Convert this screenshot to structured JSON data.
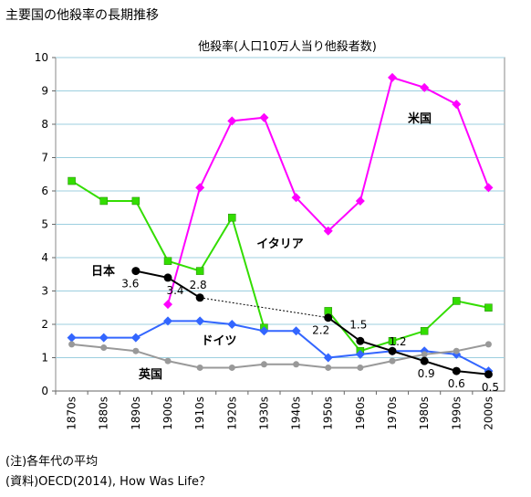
{
  "page_title": "主要国の他殺率の長期推移",
  "notes": [
    "(注)各年代の平均",
    "(資料)OECD(2014), How Was Life？"
  ],
  "chart_data": {
    "type": "line",
    "title": "他殺率(人口10万人当り他殺者数)",
    "xlabel": "",
    "ylabel": "",
    "categories": [
      "1870s",
      "1880s",
      "1890s",
      "1900s",
      "1910s",
      "1920s",
      "1930s",
      "1940s",
      "1950s",
      "1960s",
      "1970s",
      "1980s",
      "1990s",
      "2000s"
    ],
    "ylim": [
      0,
      10
    ],
    "yticks": [
      0,
      1,
      2,
      3,
      4,
      5,
      6,
      7,
      8,
      9,
      10
    ],
    "grid": true,
    "series": [
      {
        "name": "米国",
        "color": "#ff00ff",
        "marker": "diamond",
        "values": [
          null,
          null,
          null,
          2.6,
          6.1,
          8.1,
          8.2,
          5.8,
          4.8,
          5.7,
          9.4,
          9.1,
          8.6,
          6.1
        ]
      },
      {
        "name": "イタリア",
        "color": "#33dd00",
        "marker": "square",
        "values": [
          6.3,
          5.7,
          5.7,
          3.9,
          3.6,
          5.2,
          1.9,
          null,
          2.4,
          1.2,
          1.5,
          1.8,
          2.7,
          2.5
        ]
      },
      {
        "name": "ドイツ",
        "color": "#3366ff",
        "marker": "diamond",
        "values": [
          1.6,
          1.6,
          1.6,
          2.1,
          2.1,
          2.0,
          1.8,
          1.8,
          1.0,
          1.1,
          1.2,
          1.2,
          1.1,
          0.6
        ]
      },
      {
        "name": "英国",
        "color": "#999999",
        "marker": "circle",
        "values": [
          1.4,
          1.3,
          1.2,
          0.9,
          0.7,
          0.7,
          0.8,
          0.8,
          0.7,
          0.7,
          0.9,
          1.1,
          1.2,
          1.4
        ]
      },
      {
        "name": "日本",
        "color": "#000000",
        "marker": "circle",
        "values": [
          null,
          null,
          3.6,
          3.4,
          2.8,
          null,
          null,
          null,
          2.2,
          1.5,
          1.2,
          0.9,
          0.6,
          0.5
        ],
        "data_labels": [
          "",
          "",
          "3.6",
          "3.4",
          "2.8",
          "",
          "",
          "",
          "2.2",
          "1.5",
          "1.2",
          "0.9",
          "0.6",
          "0.5"
        ]
      }
    ],
    "series_labels": [
      "米国",
      "イタリア",
      "ドイツ",
      "英国",
      "日本"
    ]
  }
}
